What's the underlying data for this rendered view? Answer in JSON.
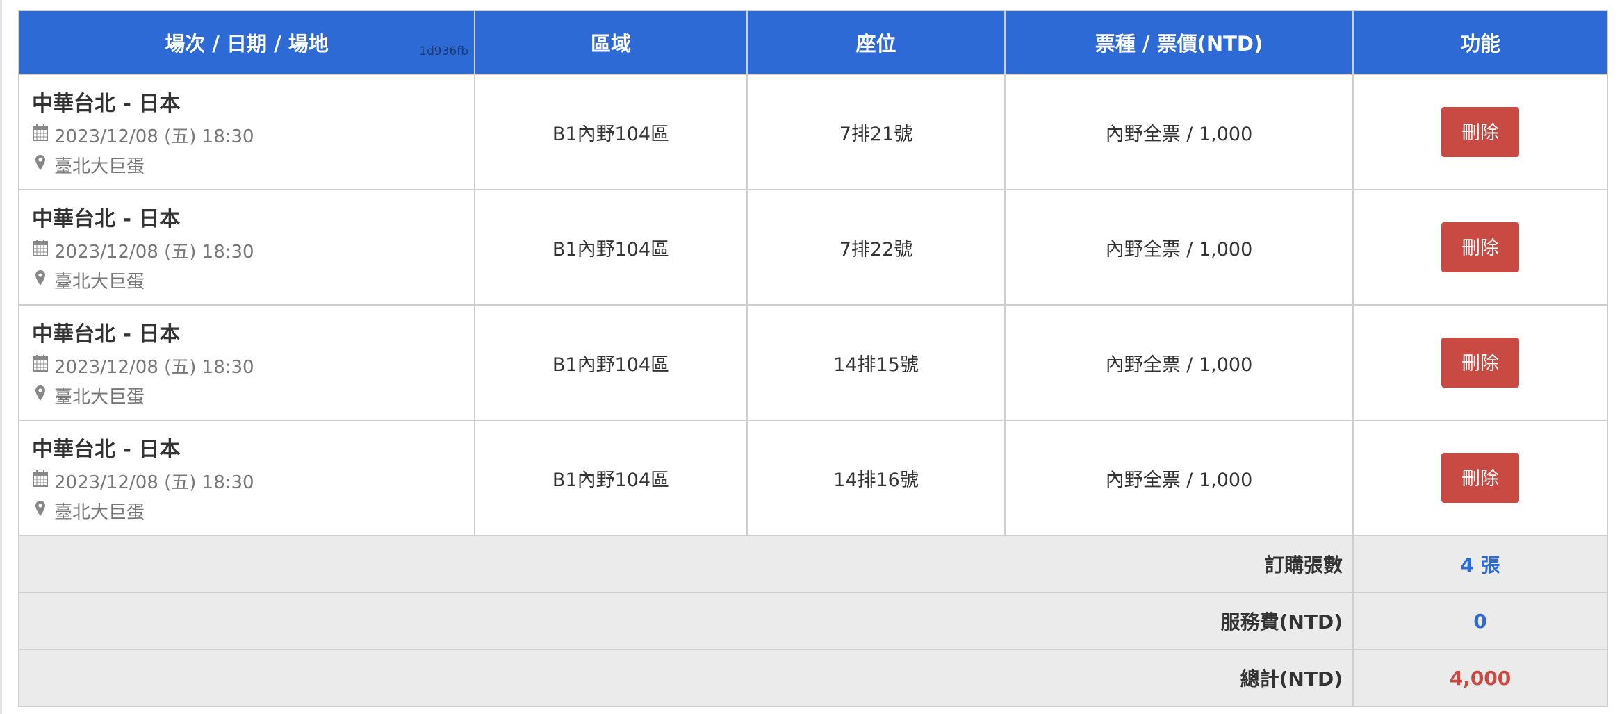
{
  "header": {
    "col_event": "場次 / 日期 / 場地",
    "build_hash": "1d936fb",
    "col_area": "區域",
    "col_seat": "座位",
    "col_ticket": "票種 / 票價(NTD)",
    "col_action": "功能"
  },
  "rows": [
    {
      "title": "中華台北 - 日本",
      "date": "2023/12/08 (五) 18:30",
      "venue": "臺北大巨蛋",
      "area": "B1內野104區",
      "seat": "7排21號",
      "ticket": "內野全票 / 1,000",
      "action": "刪除"
    },
    {
      "title": "中華台北 - 日本",
      "date": "2023/12/08 (五) 18:30",
      "venue": "臺北大巨蛋",
      "area": "B1內野104區",
      "seat": "7排22號",
      "ticket": "內野全票 / 1,000",
      "action": "刪除"
    },
    {
      "title": "中華台北 - 日本",
      "date": "2023/12/08 (五) 18:30",
      "venue": "臺北大巨蛋",
      "area": "B1內野104區",
      "seat": "14排15號",
      "ticket": "內野全票 / 1,000",
      "action": "刪除"
    },
    {
      "title": "中華台北 - 日本",
      "date": "2023/12/08 (五) 18:30",
      "venue": "臺北大巨蛋",
      "area": "B1內野104區",
      "seat": "14排16號",
      "ticket": "內野全票 / 1,000",
      "action": "刪除"
    }
  ],
  "summary": {
    "count_label": "訂購張數",
    "count_value": "4 張",
    "fee_label": "服務費(NTD)",
    "fee_value": "0",
    "total_label": "總計(NTD)",
    "total_value": "4,000"
  },
  "colors": {
    "header": "#2d6ad6",
    "delete": "#c94a43",
    "accent_blue": "#2d6ad6",
    "total_red": "#c94a43"
  },
  "icons": {
    "date": "calendar-icon",
    "venue": "map-marker-icon"
  }
}
